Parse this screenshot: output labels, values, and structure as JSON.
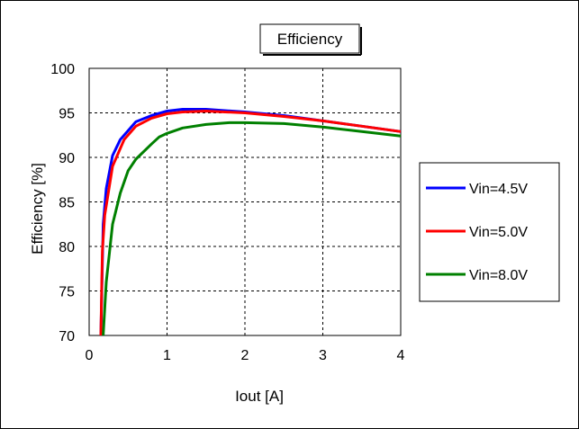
{
  "chart_data": {
    "type": "line",
    "title": "Efficiency",
    "xlabel": "Iout [A]",
    "ylabel": "Efficiency   [%]",
    "xlim": [
      0,
      4
    ],
    "ylim": [
      70,
      100
    ],
    "xticks": [
      0,
      1,
      2,
      3,
      4
    ],
    "xtick_labels": [
      "0",
      "1",
      "2",
      "3",
      "4"
    ],
    "yticks": [
      70,
      75,
      80,
      85,
      90,
      95,
      100
    ],
    "ytick_labels": [
      "70",
      "75",
      "80",
      "85",
      "90",
      "95",
      "100"
    ],
    "grid": true,
    "legend_position": "right",
    "series": [
      {
        "name": "Vin=4.5V",
        "color": "#0000ff",
        "x": [
          0.15,
          0.18,
          0.22,
          0.3,
          0.4,
          0.6,
          0.8,
          1.0,
          1.2,
          1.5,
          2.0,
          2.5,
          3.0,
          3.5,
          4.0
        ],
        "y": [
          70,
          82.5,
          86.5,
          90.2,
          92.0,
          94.0,
          94.7,
          95.2,
          95.4,
          95.4,
          95.1,
          94.7,
          94.1,
          93.5,
          92.9
        ]
      },
      {
        "name": "Vin=5.0V",
        "color": "#ff0000",
        "x": [
          0.15,
          0.17,
          0.2,
          0.3,
          0.45,
          0.6,
          0.8,
          1.0,
          1.2,
          1.5,
          2.0,
          2.5,
          3.0,
          3.5,
          4.0
        ],
        "y": [
          70,
          79.5,
          83.5,
          89.0,
          92.0,
          93.5,
          94.4,
          94.9,
          95.1,
          95.2,
          95.0,
          94.6,
          94.1,
          93.5,
          92.9
        ]
      },
      {
        "name": "Vin=8.0V",
        "color": "#008000",
        "x": [
          0.18,
          0.22,
          0.3,
          0.4,
          0.5,
          0.6,
          0.8,
          0.9,
          1.0,
          1.2,
          1.5,
          1.8,
          2.0,
          2.5,
          3.0,
          3.5,
          4.0
        ],
        "y": [
          70,
          76.0,
          82.5,
          86.0,
          88.5,
          89.8,
          91.5,
          92.3,
          92.7,
          93.3,
          93.7,
          93.9,
          93.9,
          93.8,
          93.4,
          92.9,
          92.4
        ]
      }
    ]
  }
}
